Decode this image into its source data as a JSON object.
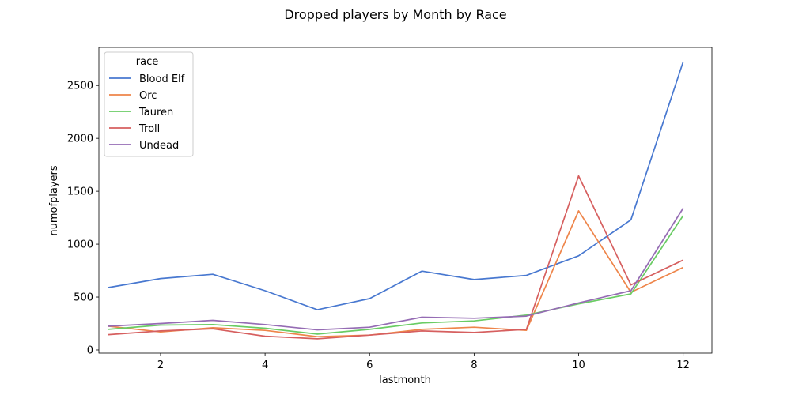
{
  "chart_data": {
    "type": "line",
    "title": "Dropped players by Month by Race",
    "xlabel": "lastmonth",
    "ylabel": "numofplayers",
    "xlim": [
      0.82,
      12.55
    ],
    "ylim": [
      -30,
      2860
    ],
    "xticks": [
      2,
      4,
      6,
      8,
      10,
      12
    ],
    "yticks": [
      0,
      500,
      1000,
      1500,
      2000,
      2500
    ],
    "grid": false,
    "legend": {
      "title": "race",
      "position": "top-left"
    },
    "x": [
      1,
      2,
      3,
      4,
      5,
      6,
      7,
      8,
      9,
      10,
      11,
      12
    ],
    "series": [
      {
        "name": "Blood Elf",
        "color": "#4878d0",
        "values": [
          590,
          675,
          715,
          560,
          380,
          485,
          745,
          665,
          705,
          890,
          1230,
          2725
        ]
      },
      {
        "name": "Orc",
        "color": "#ee854a",
        "values": [
          225,
          170,
          210,
          185,
          125,
          140,
          195,
          215,
          185,
          1315,
          545,
          780
        ]
      },
      {
        "name": "Tauren",
        "color": "#6acc64",
        "values": [
          195,
          235,
          240,
          205,
          150,
          195,
          255,
          275,
          330,
          435,
          530,
          1270
        ]
      },
      {
        "name": "Troll",
        "color": "#d65f5f",
        "values": [
          145,
          180,
          200,
          130,
          105,
          140,
          180,
          165,
          195,
          1645,
          615,
          850
        ]
      },
      {
        "name": "Undead",
        "color": "#956cb4",
        "values": [
          225,
          250,
          280,
          240,
          190,
          215,
          310,
          300,
          320,
          445,
          560,
          1340
        ]
      }
    ]
  }
}
